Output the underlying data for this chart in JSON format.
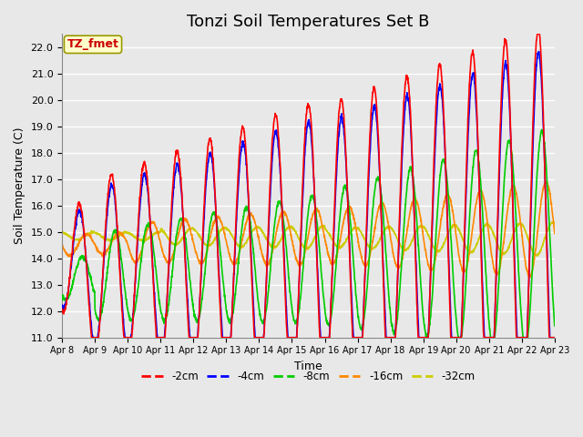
{
  "title": "Tonzi Soil Temperatures Set B",
  "xlabel": "Time",
  "ylabel": "Soil Temperature (C)",
  "ylim": [
    11.0,
    22.5
  ],
  "yticks": [
    11.0,
    12.0,
    13.0,
    14.0,
    15.0,
    16.0,
    17.0,
    18.0,
    19.0,
    20.0,
    21.0,
    22.0
  ],
  "x_tick_labels": [
    "Apr 8",
    "Apr 9",
    "Apr 10",
    "Apr 11",
    "Apr 12",
    "Apr 13",
    "Apr 14",
    "Apr 15",
    "Apr 16",
    "Apr 17",
    "Apr 18",
    "Apr 19",
    "Apr 20",
    "Apr 21",
    "Apr 22",
    "Apr 23"
  ],
  "series_colors": {
    "-2cm": "#ff0000",
    "-4cm": "#0000ff",
    "-8cm": "#00cc00",
    "-16cm": "#ff8800",
    "-32cm": "#cccc00"
  },
  "annotation_text": "TZ_fmet",
  "annotation_color": "#cc0000",
  "annotation_bg": "#ffffcc",
  "plot_bg_color": "#e8e8e8",
  "grid_color": "#ffffff",
  "title_fontsize": 13,
  "label_fontsize": 9,
  "tick_fontsize": 8,
  "line_width": 1.2,
  "num_days": 15
}
